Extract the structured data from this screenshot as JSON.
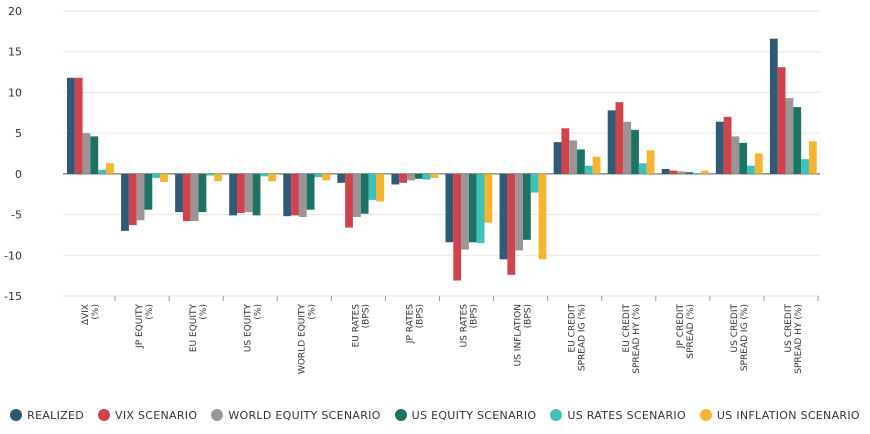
{
  "chart_data": {
    "type": "bar",
    "ylim": [
      -15,
      20
    ],
    "yticks": [
      20,
      15,
      10,
      5,
      0,
      -5,
      -10,
      -15
    ],
    "legend_position": "bottom",
    "grid": true,
    "categories": [
      [
        "ΔVIX",
        "(%)"
      ],
      [
        "JP EQUITY",
        "(%)"
      ],
      [
        "EU EQUITY",
        "(%)"
      ],
      [
        "US EQUITY",
        "(%)"
      ],
      [
        "WORLD EQUITY",
        "(%)"
      ],
      [
        "EU RATES",
        "(BPS)"
      ],
      [
        "JP RATES",
        "(BPS)"
      ],
      [
        "US RATES",
        "(BPS)"
      ],
      [
        "US INFLATION",
        "(BPS)"
      ],
      [
        "EU CREDIT",
        "SPREAD IG (%)"
      ],
      [
        "EU CREDIT",
        "SPREAD HY (%)"
      ],
      [
        "JP CREDIT",
        "SPREAD (%)"
      ],
      [
        "US CREDIT",
        "SPREAD IG (%)"
      ],
      [
        "US CREDIT",
        "SPREAD HY (%)"
      ]
    ],
    "series": [
      {
        "name": "REALIZED",
        "color": "#2e5a78",
        "values": [
          11.8,
          -7.0,
          -4.7,
          -5.1,
          -5.2,
          -1.1,
          -1.3,
          -8.4,
          -10.5,
          3.9,
          7.8,
          0.6,
          6.4,
          16.6
        ]
      },
      {
        "name": "VIX SCENARIO",
        "color": "#d0434c",
        "values": [
          11.8,
          -6.3,
          -5.8,
          -4.8,
          -5.1,
          -6.6,
          -1.1,
          -13.1,
          -12.4,
          5.6,
          8.8,
          0.4,
          7.0,
          13.1
        ]
      },
      {
        "name": "WORLD EQUITY SCENARIO",
        "color": "#9b9595",
        "values": [
          5.0,
          -5.7,
          -5.8,
          -4.7,
          -5.3,
          -5.3,
          -0.8,
          -9.3,
          -9.4,
          4.1,
          6.4,
          0.3,
          4.6,
          9.3
        ]
      },
      {
        "name": "US EQUITY SCENARIO",
        "color": "#1b7265",
        "values": [
          4.6,
          -4.4,
          -4.7,
          -5.1,
          -4.4,
          -4.9,
          -0.6,
          -8.4,
          -8.1,
          3.0,
          5.4,
          0.2,
          3.8,
          8.2
        ]
      },
      {
        "name": "US RATES SCENARIO",
        "color": "#3fc0b8",
        "values": [
          0.5,
          -0.5,
          -0.2,
          -0.3,
          -0.4,
          -3.2,
          -0.7,
          -8.5,
          -2.3,
          1.0,
          1.3,
          0.1,
          1.0,
          1.8
        ]
      },
      {
        "name": "US INFLATION SCENARIO",
        "color": "#f8b431",
        "values": [
          1.3,
          -1.0,
          -0.9,
          -0.9,
          -0.8,
          -3.4,
          -0.5,
          -6.0,
          -10.5,
          2.1,
          2.9,
          0.4,
          2.5,
          4.0
        ]
      }
    ]
  }
}
